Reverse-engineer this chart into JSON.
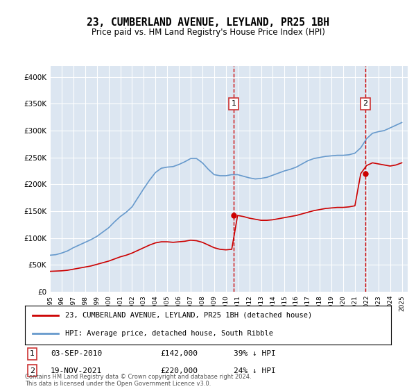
{
  "title": "23, CUMBERLAND AVENUE, LEYLAND, PR25 1BH",
  "subtitle": "Price paid vs. HM Land Registry's House Price Index (HPI)",
  "ylabel": "",
  "background_color": "#dce6f1",
  "plot_bg_color": "#dce6f1",
  "ylim": [
    0,
    420000
  ],
  "yticks": [
    0,
    50000,
    100000,
    150000,
    200000,
    250000,
    300000,
    350000,
    400000
  ],
  "ytick_labels": [
    "£0",
    "£50K",
    "£100K",
    "£150K",
    "£200K",
    "£250K",
    "£300K",
    "£350K",
    "£400K"
  ],
  "xlim_start": 1995.0,
  "xlim_end": 2025.5,
  "transaction1_x": 2010.67,
  "transaction1_y": 142000,
  "transaction1_label": "03-SEP-2010",
  "transaction1_price": "£142,000",
  "transaction1_hpi": "39% ↓ HPI",
  "transaction2_x": 2021.88,
  "transaction2_y": 220000,
  "transaction2_label": "19-NOV-2021",
  "transaction2_price": "£220,000",
  "transaction2_hpi": "24% ↓ HPI",
  "red_line_color": "#cc0000",
  "blue_line_color": "#6699cc",
  "dashed_line_color": "#cc0000",
  "legend_label1": "23, CUMBERLAND AVENUE, LEYLAND, PR25 1BH (detached house)",
  "legend_label2": "HPI: Average price, detached house, South Ribble",
  "footnote": "Contains HM Land Registry data © Crown copyright and database right 2024.\nThis data is licensed under the Open Government Licence v3.0.",
  "hpi_years": [
    1995,
    1995.5,
    1996,
    1996.5,
    1997,
    1997.5,
    1998,
    1998.5,
    1999,
    1999.5,
    2000,
    2000.5,
    2001,
    2001.5,
    2002,
    2002.5,
    2003,
    2003.5,
    2004,
    2004.5,
    2005,
    2005.5,
    2006,
    2006.5,
    2007,
    2007.5,
    2008,
    2008.5,
    2009,
    2009.5,
    2010,
    2010.5,
    2011,
    2011.5,
    2012,
    2012.5,
    2013,
    2013.5,
    2014,
    2014.5,
    2015,
    2015.5,
    2016,
    2016.5,
    2017,
    2017.5,
    2018,
    2018.5,
    2019,
    2019.5,
    2020,
    2020.5,
    2021,
    2021.5,
    2022,
    2022.5,
    2023,
    2023.5,
    2024,
    2024.5,
    2025
  ],
  "hpi_values": [
    68000,
    69000,
    72000,
    76000,
    82000,
    87000,
    92000,
    97000,
    103000,
    111000,
    119000,
    130000,
    140000,
    148000,
    158000,
    175000,
    192000,
    208000,
    222000,
    230000,
    232000,
    233000,
    237000,
    242000,
    248000,
    248000,
    240000,
    228000,
    218000,
    216000,
    216000,
    218000,
    218000,
    215000,
    212000,
    210000,
    211000,
    213000,
    217000,
    221000,
    225000,
    228000,
    232000,
    238000,
    244000,
    248000,
    250000,
    252000,
    253000,
    254000,
    254000,
    255000,
    258000,
    268000,
    285000,
    295000,
    298000,
    300000,
    305000,
    310000,
    315000
  ],
  "red_years": [
    1995,
    1995.5,
    1996,
    1996.5,
    1997,
    1997.5,
    1998,
    1998.5,
    1999,
    1999.5,
    2000,
    2000.5,
    2001,
    2001.5,
    2002,
    2002.5,
    2003,
    2003.5,
    2004,
    2004.5,
    2005,
    2005.5,
    2006,
    2006.5,
    2007,
    2007.5,
    2008,
    2008.5,
    2009,
    2009.5,
    2010,
    2010.5,
    2011,
    2011.5,
    2012,
    2012.5,
    2013,
    2013.5,
    2014,
    2014.5,
    2015,
    2015.5,
    2016,
    2016.5,
    2017,
    2017.5,
    2018,
    2018.5,
    2019,
    2019.5,
    2020,
    2020.5,
    2021,
    2021.5,
    2022,
    2022.5,
    2023,
    2023.5,
    2024,
    2024.5,
    2025
  ],
  "red_values": [
    38000,
    38500,
    39000,
    40000,
    42000,
    44000,
    46000,
    48000,
    51000,
    54000,
    57000,
    61000,
    65000,
    68000,
    72000,
    77000,
    82000,
    87000,
    91000,
    93000,
    93000,
    92000,
    93000,
    94000,
    96000,
    95000,
    92000,
    87000,
    82000,
    79000,
    78000,
    79000,
    142000,
    140000,
    137000,
    135000,
    133000,
    133000,
    134000,
    136000,
    138000,
    140000,
    142000,
    145000,
    148000,
    151000,
    153000,
    155000,
    156000,
    157000,
    157000,
    158000,
    160000,
    220000,
    235000,
    240000,
    238000,
    236000,
    234000,
    236000,
    240000
  ]
}
